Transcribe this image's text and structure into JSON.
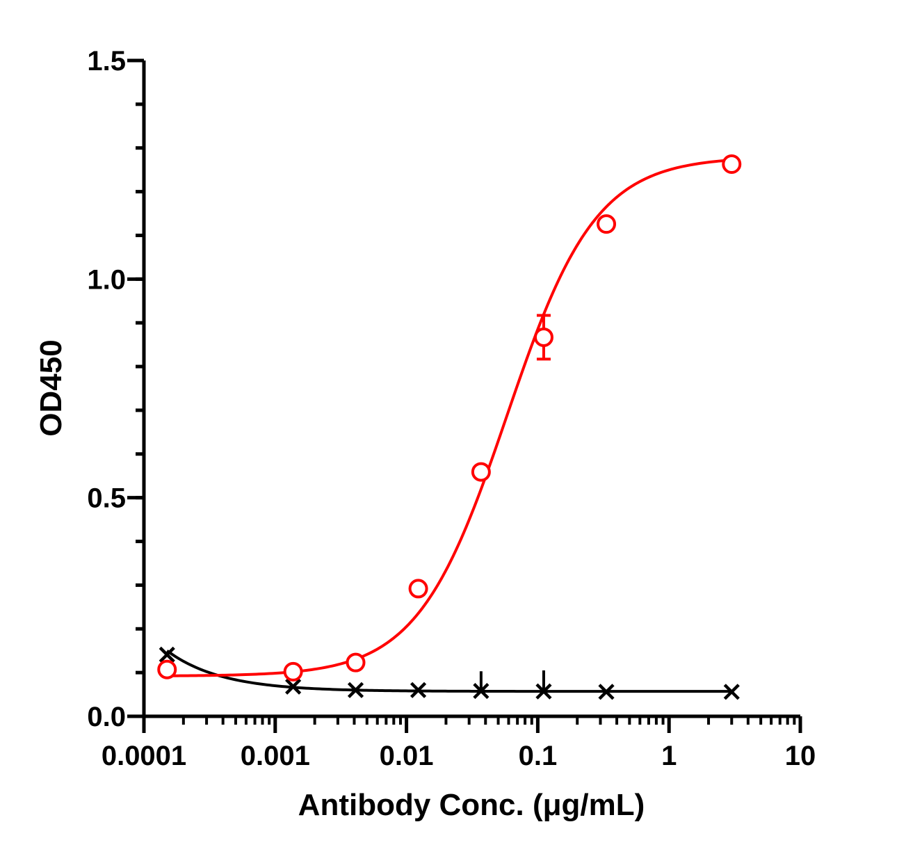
{
  "chart_data": {
    "type": "scatter",
    "xlabel": "Antibody Conc. (μg/mL)",
    "ylabel": "OD450",
    "xscale": "log",
    "xlim": [
      0.0001,
      10
    ],
    "ylim": [
      0,
      1.5
    ],
    "x_ticks": [
      {
        "value": 0.0001,
        "label": "0.0001"
      },
      {
        "value": 0.001,
        "label": "0.001"
      },
      {
        "value": 0.01,
        "label": "0.01"
      },
      {
        "value": 0.1,
        "label": "0.1"
      },
      {
        "value": 1,
        "label": "1"
      },
      {
        "value": 10,
        "label": "10"
      }
    ],
    "y_ticks": [
      {
        "value": 0,
        "label": "0.0"
      },
      {
        "value": 0.5,
        "label": "0.5"
      },
      {
        "value": 1.0,
        "label": "1.0"
      },
      {
        "value": 1.5,
        "label": "1.5"
      }
    ],
    "y_minor_step": 0.1,
    "grid": false,
    "legend": "none",
    "series": [
      {
        "marker": "circle",
        "color": "#ff0000",
        "x": [
          0.00015,
          0.00137,
          0.0041,
          0.0123,
          0.037,
          0.111,
          0.333,
          3.0
        ],
        "y": [
          0.107,
          0.102,
          0.123,
          0.292,
          0.559,
          0.867,
          1.126,
          1.263
        ],
        "error": [
          0,
          0,
          0,
          0,
          0,
          0.05,
          0,
          0
        ],
        "fit": {
          "bottom": 0.092,
          "top": 1.28,
          "ec50": 0.058,
          "hill": 1.28
        }
      },
      {
        "marker": "x",
        "color": "#000000",
        "x": [
          0.00015,
          0.00137,
          0.0041,
          0.0123,
          0.037,
          0.111,
          0.333,
          3.0
        ],
        "y": [
          0.141,
          0.068,
          0.06,
          0.06,
          0.058,
          0.057,
          0.056,
          0.056
        ],
        "error_up": [
          0,
          0,
          0,
          0,
          0.045,
          0.048,
          0,
          0
        ],
        "fit": {
          "plateau": 0.057,
          "amp": 0.093,
          "x0": 0.00015,
          "decay_per_decade": 2.4
        }
      }
    ]
  }
}
